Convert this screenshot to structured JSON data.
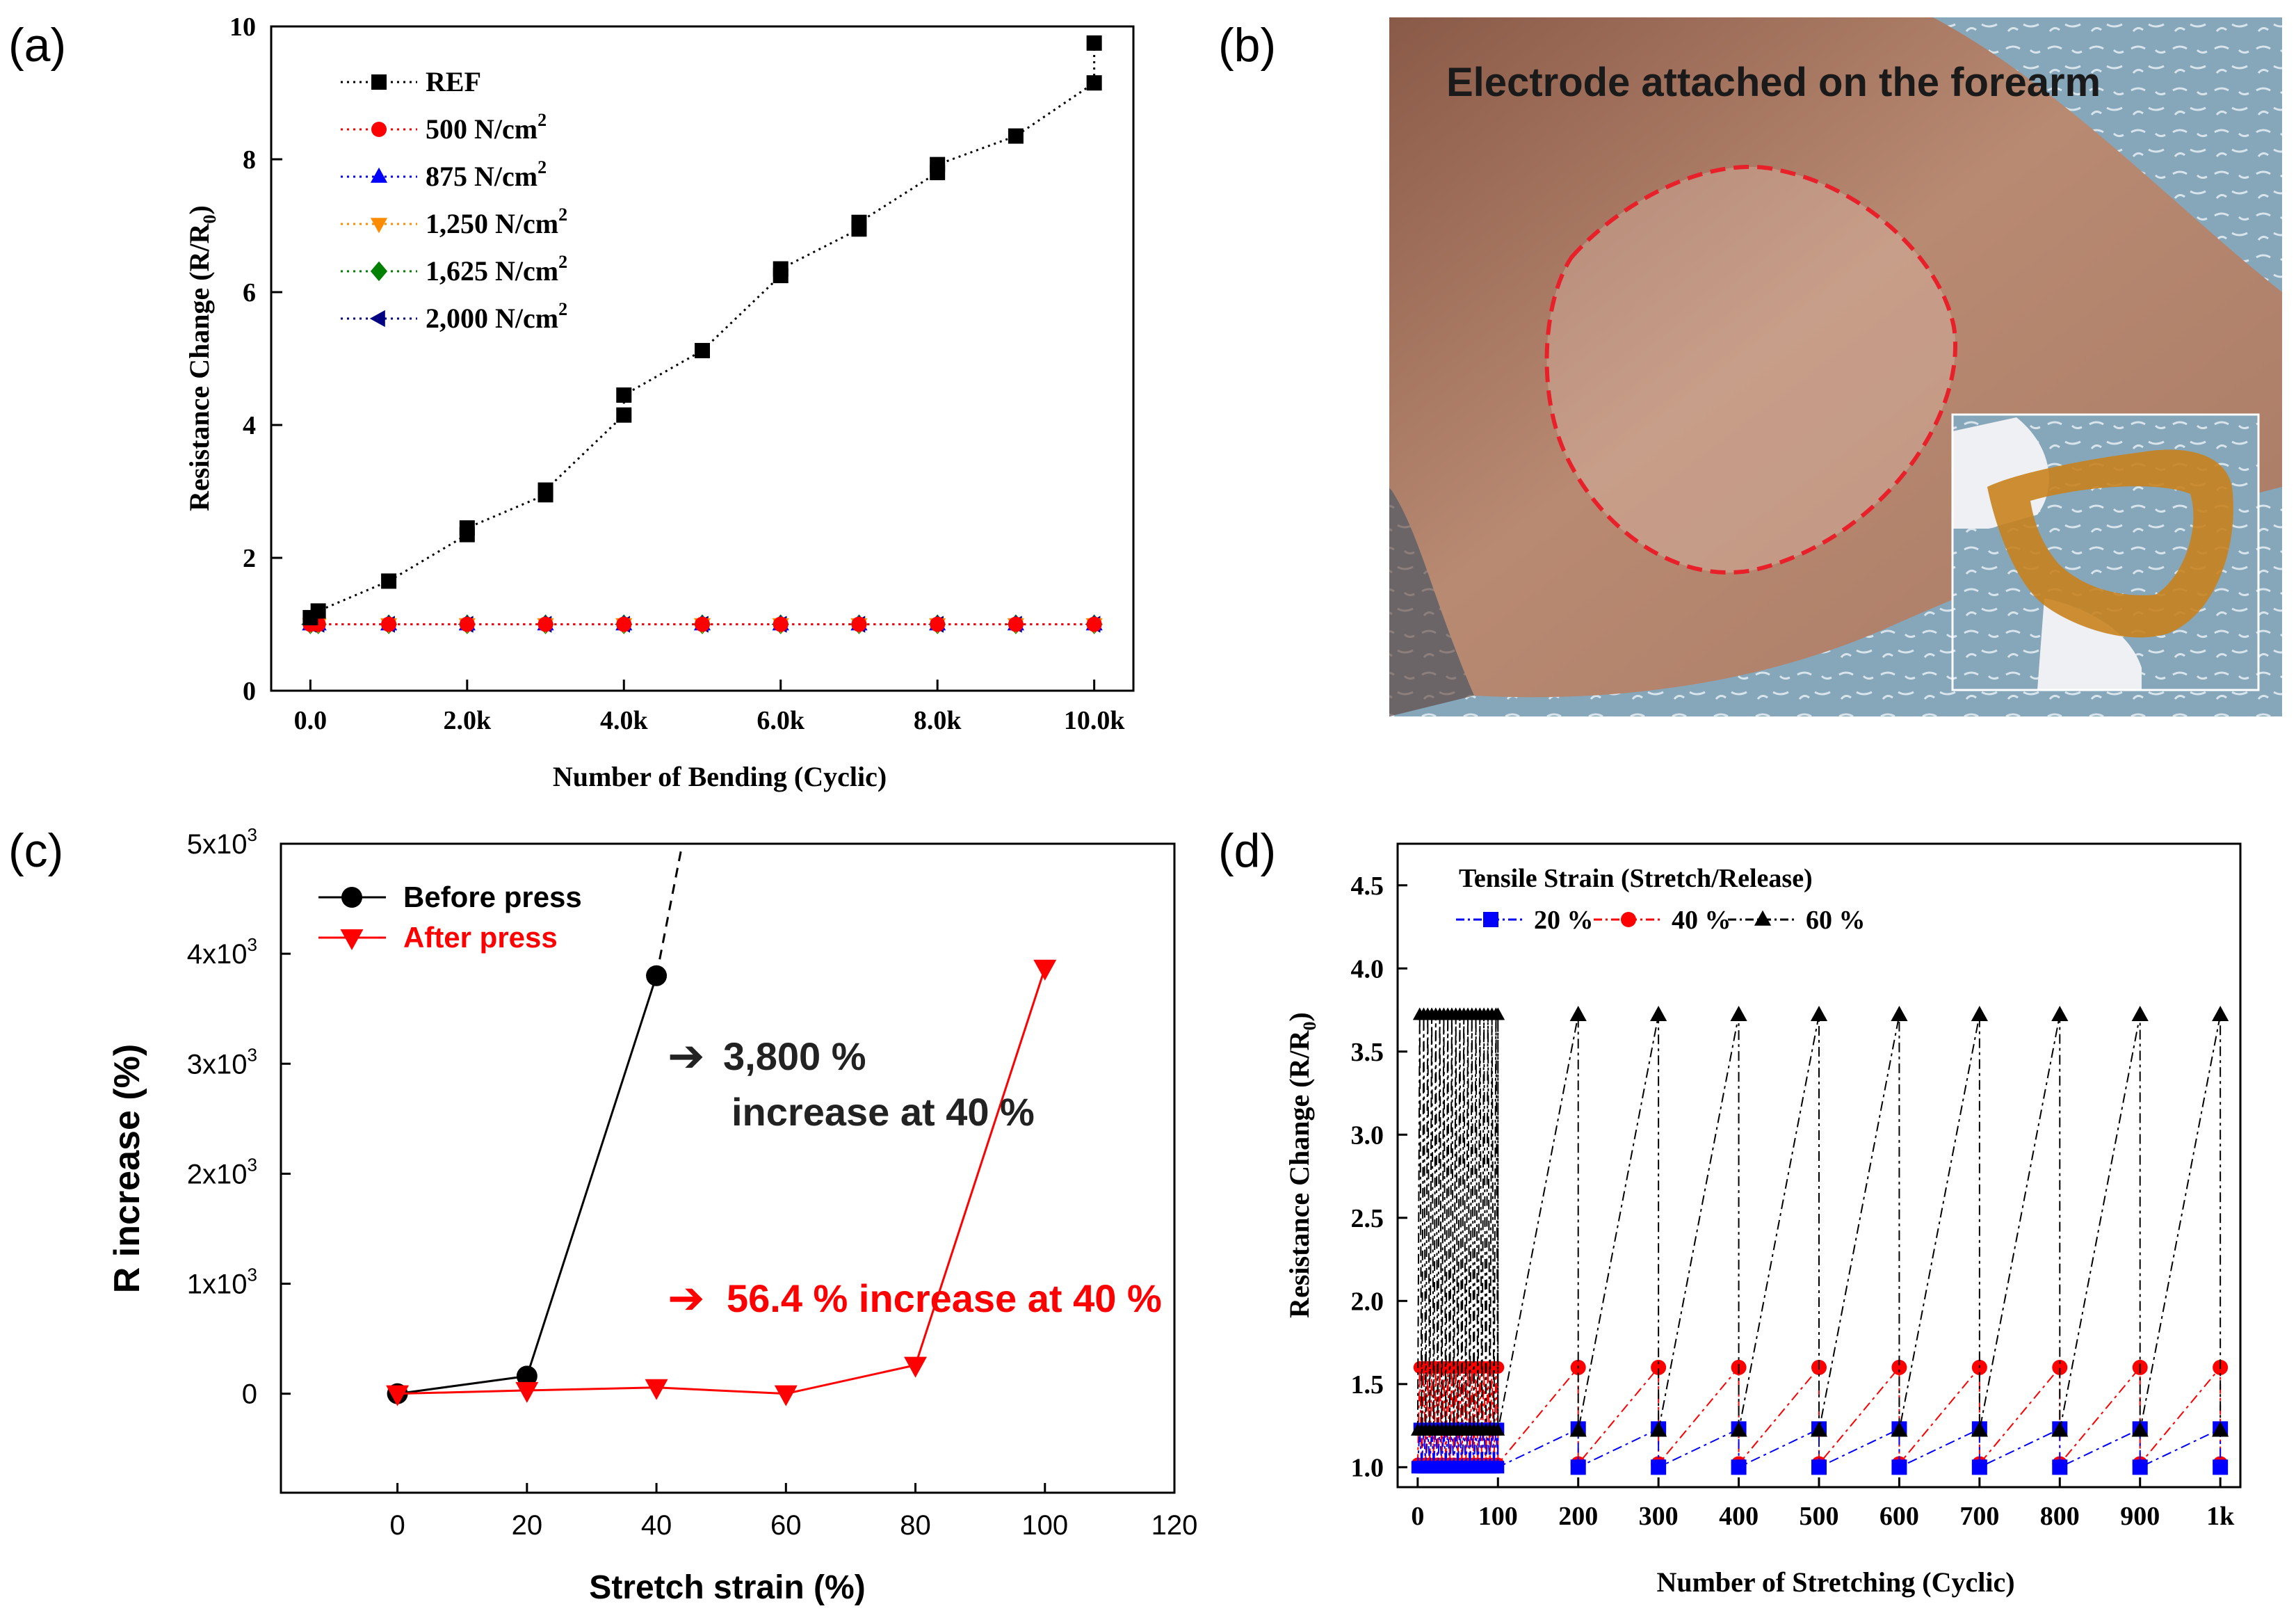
{
  "panel_labels": [
    "(a)",
    "(b)",
    "(c)",
    "(d)"
  ],
  "photo": {
    "caption": "Electrode attached on the forearm",
    "colors": {
      "skin": "#b4826a",
      "towel": "#7fa0b4",
      "outline": "#e8202a",
      "glove": "#eef0f4",
      "film": "#c8821e"
    }
  },
  "chart_data": [
    {
      "panel": "(a)",
      "type": "line",
      "title": "",
      "xlabel": "Number of Bending (Cyclic)",
      "ylabel": "Resistance Change (R/R",
      "ylabel_sub": "0",
      "ylabel_close": ")",
      "xlim": [
        -500,
        10500
      ],
      "ylim": [
        0,
        10
      ],
      "xticks": [
        0,
        2000,
        4000,
        6000,
        8000,
        10000
      ],
      "xtick_labels": [
        "0.0",
        "2.0k",
        "4.0k",
        "6.0k",
        "8.0k",
        "10.0k"
      ],
      "yticks": [
        0,
        2,
        4,
        6,
        8,
        10
      ],
      "ytick_labels": [
        "0",
        "2",
        "4",
        "6",
        "8",
        "10"
      ],
      "legend_position": "top-left",
      "series": [
        {
          "name": "REF",
          "sup": "",
          "color": "#000000",
          "marker": "square",
          "x": [
            0,
            100,
            1000,
            2000,
            2000,
            3000,
            3000,
            4000,
            4000,
            5000,
            6000,
            6000,
            7000,
            7000,
            8000,
            8000,
            9000,
            10000,
            10000
          ],
          "y": [
            1.1,
            1.2,
            1.65,
            2.35,
            2.45,
            2.95,
            3.02,
            4.15,
            4.45,
            5.12,
            6.25,
            6.35,
            6.95,
            7.05,
            7.8,
            7.92,
            8.35,
            9.15,
            9.75
          ]
        },
        {
          "name": "500 N/cm",
          "sup": "2",
          "color": "#ff0000",
          "marker": "circle",
          "x": [
            0,
            100,
            1000,
            2000,
            3000,
            4000,
            5000,
            6000,
            7000,
            8000,
            9000,
            10000
          ],
          "y": [
            1,
            1,
            1,
            1,
            1,
            1,
            1,
            1,
            1,
            1,
            1,
            1
          ]
        },
        {
          "name": "875 N/cm",
          "sup": "2",
          "color": "#0000ff",
          "marker": "triangle-up",
          "x": [
            0,
            100,
            1000,
            2000,
            3000,
            4000,
            5000,
            6000,
            7000,
            8000,
            9000,
            10000
          ],
          "y": [
            1,
            1,
            1,
            1,
            1,
            1,
            1,
            1,
            1,
            1,
            1,
            1
          ]
        },
        {
          "name": "1,250 N/cm",
          "sup": "2",
          "color": "#ff8c00",
          "marker": "triangle-down",
          "x": [
            0,
            100,
            1000,
            2000,
            3000,
            4000,
            5000,
            6000,
            7000,
            8000,
            9000,
            10000
          ],
          "y": [
            1,
            1,
            1,
            1,
            1,
            1,
            1,
            1,
            1,
            1,
            1,
            1
          ]
        },
        {
          "name": "1,625 N/cm",
          "sup": "2",
          "color": "#008000",
          "marker": "diamond",
          "x": [
            0,
            100,
            1000,
            2000,
            3000,
            4000,
            5000,
            6000,
            7000,
            8000,
            9000,
            10000
          ],
          "y": [
            1,
            1,
            1,
            1,
            1,
            1,
            1,
            1,
            1,
            1,
            1,
            1
          ]
        },
        {
          "name": "2,000 N/cm",
          "sup": "2",
          "color": "#000080",
          "marker": "triangle-left",
          "x": [
            0,
            100,
            1000,
            2000,
            3000,
            4000,
            5000,
            6000,
            7000,
            8000,
            9000,
            10000
          ],
          "y": [
            1,
            1,
            1,
            1,
            1,
            1,
            1,
            1,
            1,
            1,
            1,
            1
          ]
        }
      ]
    },
    {
      "panel": "(c)",
      "type": "line",
      "title": "",
      "xlabel": "Stretch strain (%)",
      "ylabel": "R increase (%)",
      "xlim": [
        -18,
        120
      ],
      "ylim": [
        -900,
        5000
      ],
      "xticks": [
        0,
        20,
        40,
        60,
        80,
        100,
        120
      ],
      "xtick_labels": [
        "0",
        "20",
        "40",
        "60",
        "80",
        "100",
        "120"
      ],
      "yticks": [
        0,
        1000,
        2000,
        3000,
        4000,
        5000
      ],
      "ytick_labels": [
        "0",
        "1x10",
        "2x10",
        "3x10",
        "4x10",
        "5x10"
      ],
      "ytick_sup": [
        "",
        "3",
        "3",
        "3",
        "3",
        "3"
      ],
      "legend_position": "top-left",
      "series": [
        {
          "name": "Before press",
          "color": "#000000",
          "marker": "circle",
          "x": [
            0,
            20,
            40
          ],
          "y": [
            0,
            160,
            3800
          ],
          "extrapolation": {
            "x": [
              40,
              44
            ],
            "y": [
              3800,
              5000
            ]
          }
        },
        {
          "name": "After press",
          "color": "#ff0000",
          "marker": "triangle-down",
          "x": [
            0,
            20,
            40,
            60,
            80,
            100
          ],
          "y": [
            0,
            30,
            56.4,
            0,
            260,
            3870
          ]
        }
      ],
      "annotations": [
        {
          "arrow": "➔",
          "line1": "3,800 %",
          "line2": "increase at 40 %",
          "color": "#222222"
        },
        {
          "arrow": "➔",
          "line1": "56.4 % increase at 40 %",
          "color": "#ff0000"
        }
      ]
    },
    {
      "panel": "(d)",
      "type": "line",
      "title": "",
      "xlabel": "Number of Stretching (Cyclic)",
      "ylabel": "Resistance Change (R/R",
      "ylabel_sub": "0",
      "ylabel_close": ")",
      "xlim": [
        -25,
        1025
      ],
      "ylim": [
        0.88,
        4.75
      ],
      "xticks": [
        0,
        100,
        200,
        300,
        400,
        500,
        600,
        700,
        800,
        900,
        1000
      ],
      "xtick_labels": [
        "0",
        "100",
        "200",
        "300",
        "400",
        "500",
        "600",
        "700",
        "800",
        "900",
        "1k"
      ],
      "yticks": [
        1.0,
        1.5,
        2.0,
        2.5,
        3.0,
        3.5,
        4.0,
        4.5
      ],
      "ytick_labels": [
        "1.0",
        "1.5",
        "2.0",
        "2.5",
        "3.0",
        "3.5",
        "4.0",
        "4.5"
      ],
      "legend_title": "Tensile Strain (Stretch/Release)",
      "legend_position": "top-left",
      "series": [
        {
          "name": "20 %",
          "color": "#0000ff",
          "marker": "square",
          "released": 1.0,
          "stretched": 1.23
        },
        {
          "name": "40 %",
          "color": "#ff0000",
          "marker": "circle",
          "released": 1.02,
          "stretched": 1.6
        },
        {
          "name": "60 %",
          "color": "#000000",
          "marker": "triangle-up",
          "released": 1.22,
          "stretched": 3.72
        }
      ],
      "first_cycles": 100,
      "dense_step": 5,
      "sparse_cycles": [
        200,
        300,
        400,
        500,
        600,
        700,
        800,
        900,
        1000
      ]
    }
  ]
}
